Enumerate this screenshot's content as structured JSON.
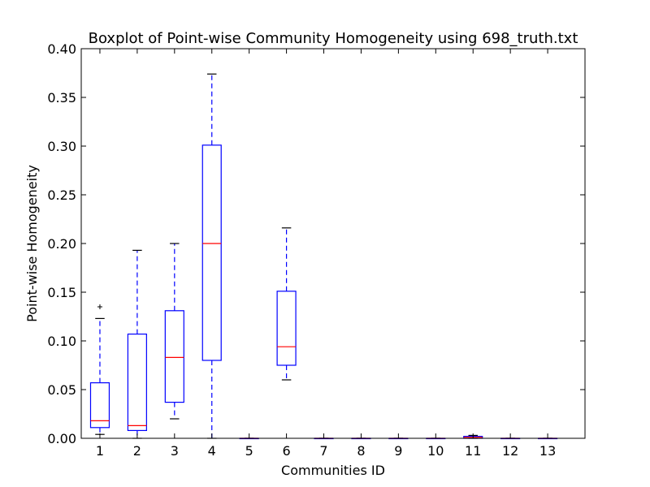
{
  "chart_data": {
    "type": "boxplot",
    "title": "Boxplot of Point-wise Community Homogeneity using 698_truth.txt",
    "xlabel": "Communities ID",
    "ylabel": "Point-wise Homogeneity",
    "ylim": [
      0,
      0.4
    ],
    "yticks": [
      "0.00",
      "0.05",
      "0.10",
      "0.15",
      "0.20",
      "0.25",
      "0.30",
      "0.35",
      "0.40"
    ],
    "categories": [
      "1",
      "2",
      "3",
      "4",
      "5",
      "6",
      "7",
      "8",
      "9",
      "10",
      "11",
      "12",
      "13"
    ],
    "boxes": [
      {
        "id": "1",
        "whislo": 0.004,
        "q1": 0.011,
        "med": 0.018,
        "q3": 0.057,
        "whishi": 0.123,
        "fliers": [
          0.135
        ]
      },
      {
        "id": "2",
        "whislo": 0.0,
        "q1": 0.008,
        "med": 0.013,
        "q3": 0.107,
        "whishi": 0.193,
        "fliers": []
      },
      {
        "id": "3",
        "whislo": 0.02,
        "q1": 0.037,
        "med": 0.083,
        "q3": 0.131,
        "whishi": 0.2,
        "fliers": []
      },
      {
        "id": "4",
        "whislo": 0.0,
        "q1": 0.08,
        "med": 0.2,
        "q3": 0.301,
        "whishi": 0.374,
        "fliers": []
      },
      {
        "id": "5",
        "whislo": 0.0,
        "q1": 0.0,
        "med": 0.0,
        "q3": 0.0,
        "whishi": 0.0,
        "fliers": []
      },
      {
        "id": "6",
        "whislo": 0.06,
        "q1": 0.075,
        "med": 0.094,
        "q3": 0.151,
        "whishi": 0.216,
        "fliers": []
      },
      {
        "id": "7",
        "whislo": 0.0,
        "q1": 0.0,
        "med": 0.0,
        "q3": 0.0,
        "whishi": 0.0,
        "fliers": []
      },
      {
        "id": "8",
        "whislo": 0.0,
        "q1": 0.0,
        "med": 0.0,
        "q3": 0.0,
        "whishi": 0.0,
        "fliers": []
      },
      {
        "id": "9",
        "whislo": 0.0,
        "q1": 0.0,
        "med": 0.0,
        "q3": 0.0,
        "whishi": 0.0,
        "fliers": []
      },
      {
        "id": "10",
        "whislo": 0.0,
        "q1": 0.0,
        "med": 0.0,
        "q3": 0.0,
        "whishi": 0.0,
        "fliers": []
      },
      {
        "id": "11",
        "whislo": 0.0,
        "q1": 0.0,
        "med": 0.001,
        "q3": 0.002,
        "whishi": 0.003,
        "fliers": []
      },
      {
        "id": "12",
        "whislo": 0.0,
        "q1": 0.0,
        "med": 0.0,
        "q3": 0.0,
        "whishi": 0.0,
        "fliers": []
      },
      {
        "id": "13",
        "whislo": 0.0,
        "q1": 0.0,
        "med": 0.0,
        "q3": 0.0,
        "whishi": 0.0,
        "fliers": []
      }
    ],
    "colors": {
      "box": "#0000ff",
      "median": "#ff0000",
      "cap": "#000000",
      "flier": "#000000",
      "frame": "#000000"
    },
    "grid": false,
    "legend": "none"
  }
}
